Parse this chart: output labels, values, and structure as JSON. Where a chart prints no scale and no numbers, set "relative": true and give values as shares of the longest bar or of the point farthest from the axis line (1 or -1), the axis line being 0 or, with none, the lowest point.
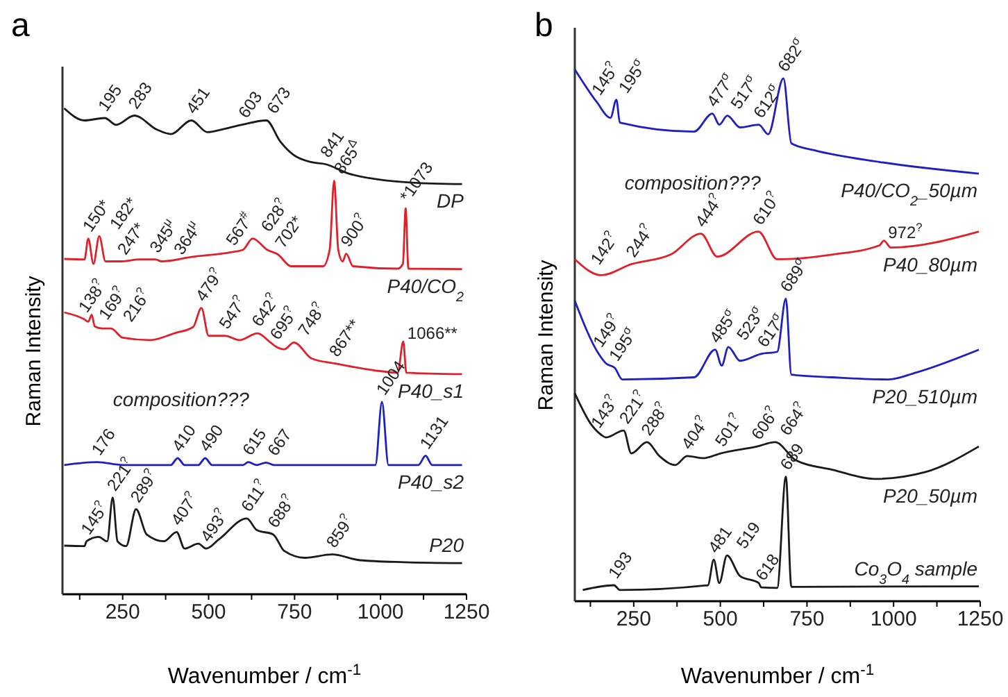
{
  "chart_data": [
    {
      "type": "line",
      "title": "a",
      "xlabel": "Wavenumber / cm$^{-1}$",
      "ylabel": "Raman Intensity",
      "relative": true,
      "tick_labels": "x",
      "legend": false,
      "grid": false,
      "marker": "none",
      "line_style": "solid",
      "xlim": [
        75,
        1250
      ],
      "xticks": [
        {
          "value": 125,
          "label": null
        },
        250,
        {
          "value": 375,
          "label": null
        },
        500,
        {
          "value": 625,
          "label": null
        },
        750,
        {
          "value": 875,
          "label": null
        },
        1000,
        {
          "value": 1125,
          "label": null
        },
        1250
      ],
      "series": [
        {
          "name": "DP",
          "color": "#1a1a1a",
          "x": [
            80,
            139,
            198,
            231,
            284,
            350,
            390,
            450,
            496,
            536,
            595,
            668,
            708,
            747,
            800,
            840,
            906,
            999,
            1091,
            1237
          ],
          "values": [
            1.0,
            0.975,
            0.98,
            0.966,
            0.985,
            0.956,
            0.947,
            0.975,
            0.951,
            0.956,
            0.966,
            0.975,
            0.932,
            0.904,
            0.889,
            0.885,
            0.866,
            0.853,
            0.847,
            0.844
          ]
        },
        {
          "name": "P40/CO$_{2}$",
          "color": "#e0202a",
          "x": [
            80,
            139,
            150,
            165,
            182,
            200,
            247,
            300,
            345,
            364,
            450,
            567,
            600,
            628,
            670,
            702,
            740,
            833,
            852,
            865,
            877,
            890,
            900,
            920,
            1050,
            1065,
            1073,
            1081,
            1237
          ],
          "values": [
            0.69,
            0.689,
            0.732,
            0.68,
            0.737,
            0.685,
            0.685,
            0.689,
            0.689,
            0.685,
            0.694,
            0.704,
            0.709,
            0.732,
            0.709,
            0.699,
            0.675,
            0.675,
            0.709,
            0.851,
            0.709,
            0.685,
            0.701,
            0.675,
            0.67,
            0.68,
            0.794,
            0.67,
            0.669
          ]
        },
        {
          "name": "P40_s1",
          "color": "#e0202a",
          "x": [
            80,
            138,
            150,
            160,
            169,
            190,
            216,
            250,
            330,
            400,
            455,
            479,
            500,
            547,
            590,
            642,
            680,
            695,
            720,
            748,
            800,
            867,
            980,
            1050,
            1066,
            1075,
            1237
          ],
          "values": [
            0.58,
            0.566,
            0.561,
            0.575,
            0.551,
            0.547,
            0.547,
            0.528,
            0.523,
            0.537,
            0.55,
            0.589,
            0.532,
            0.532,
            0.523,
            0.537,
            0.518,
            0.51,
            0.504,
            0.518,
            0.485,
            0.475,
            0.461,
            0.456,
            0.52,
            0.456,
            0.453
          ]
        },
        {
          "name": "P40_s2",
          "color": "#2020c0",
          "x": [
            80,
            176,
            250,
            390,
            410,
            430,
            470,
            490,
            510,
            600,
            615,
            640,
            667,
            690,
            985,
            1004,
            1023,
            1110,
            1131,
            1150,
            1237
          ],
          "values": [
            0.266,
            0.272,
            0.266,
            0.266,
            0.28,
            0.266,
            0.266,
            0.28,
            0.266,
            0.266,
            0.272,
            0.266,
            0.271,
            0.266,
            0.266,
            0.396,
            0.266,
            0.266,
            0.285,
            0.266,
            0.266
          ]
        },
        {
          "name": "P20",
          "color": "#1a1a1a",
          "x": [
            80,
            139,
            145,
            180,
            205,
            221,
            235,
            260,
            289,
            320,
            370,
            407,
            430,
            470,
            493,
            530,
            611,
            640,
            688,
            720,
            780,
            859,
            940,
            1070,
            1237
          ],
          "values": [
            0.1,
            0.099,
            0.109,
            0.118,
            0.109,
            0.199,
            0.109,
            0.099,
            0.175,
            0.123,
            0.109,
            0.128,
            0.094,
            0.104,
            0.094,
            0.113,
            0.156,
            0.132,
            0.123,
            0.089,
            0.075,
            0.082,
            0.07,
            0.066,
            0.064
          ]
        }
      ],
      "annotations": [
        {
          "text": "195",
          "x": 195,
          "y": 0.98
        },
        {
          "text": "283",
          "x": 283,
          "y": 0.985
        },
        {
          "text": "451",
          "x": 451,
          "y": 0.975
        },
        {
          "text": "603",
          "x": 603,
          "y": 0.966
        },
        {
          "text": "673",
          "x": 673,
          "y": 0.975
        },
        {
          "text": "841",
          "x": 841,
          "y": 0.885
        },
        {
          "text": "150*",
          "x": 150,
          "y": 0.732
        },
        {
          "text": "182*",
          "x": 182,
          "y": 0.737
        },
        {
          "text": "247*",
          "x": 247,
          "y": 0.685
        },
        {
          "text": "345$^{μ}$",
          "x": 345,
          "y": 0.689
        },
        {
          "text": "364$^{μ}$",
          "x": 364,
          "y": 0.685
        },
        {
          "text": "567$^{#}$",
          "x": 567,
          "y": 0.704
        },
        {
          "text": "628$^{?}$",
          "x": 628,
          "y": 0.732
        },
        {
          "text": "702*",
          "x": 702,
          "y": 0.699
        },
        {
          "text": "865$^{Δ}$",
          "x": 865,
          "y": 0.851
        },
        {
          "text": "900$^{?}$",
          "x": 900,
          "y": 0.701
        },
        {
          "text": "*1073",
          "x": 1073,
          "y": 0.794
        },
        {
          "text": "138$^{?}$",
          "x": 138,
          "y": 0.566
        },
        {
          "text": "169$^{?}$",
          "x": 169,
          "y": 0.551
        },
        {
          "text": "216$^{?}$",
          "x": 216,
          "y": 0.547
        },
        {
          "text": "479$^{?}$",
          "x": 479,
          "y": 0.589
        },
        {
          "text": "547$^{?}$",
          "x": 547,
          "y": 0.532
        },
        {
          "text": "642$^{?}$",
          "x": 642,
          "y": 0.537
        },
        {
          "text": "695$^{?}$",
          "x": 695,
          "y": 0.51
        },
        {
          "text": "748$^{?}$",
          "x": 748,
          "y": 0.518
        },
        {
          "text": "867**",
          "x": 867,
          "y": 0.475
        },
        {
          "text": "1066**",
          "x": 1066,
          "y": 0.52
        },
        {
          "text": "176",
          "x": 176,
          "y": 0.272
        },
        {
          "text": "410",
          "x": 410,
          "y": 0.28
        },
        {
          "text": "490",
          "x": 490,
          "y": 0.28
        },
        {
          "text": "615",
          "x": 615,
          "y": 0.272
        },
        {
          "text": "667",
          "x": 667,
          "y": 0.271
        },
        {
          "text": "1004",
          "x": 1004,
          "y": 0.396
        },
        {
          "text": "1131",
          "x": 1131,
          "y": 0.285
        },
        "composition???",
        {
          "text": "145$^{?}$",
          "x": 145,
          "y": 0.109
        },
        {
          "text": "221$^{?}$",
          "x": 221,
          "y": 0.199
        },
        {
          "text": "289$^{?}$",
          "x": 289,
          "y": 0.175
        },
        {
          "text": "407$^{?}$",
          "x": 407,
          "y": 0.128
        },
        {
          "text": "493$^{?}$",
          "x": 493,
          "y": 0.094
        },
        {
          "text": "611$^{?}$",
          "x": 611,
          "y": 0.156
        },
        {
          "text": "688$^{?}$",
          "x": 688,
          "y": 0.123
        },
        {
          "text": "859$^{?}$",
          "x": 859,
          "y": 0.082
        }
      ]
    },
    {
      "type": "line",
      "title": "b",
      "xlabel": "Wavenumber / cm$^{-1}$",
      "ylabel": "Raman Intensity",
      "relative": true,
      "tick_labels": "x",
      "legend": false,
      "grid": false,
      "marker": "none",
      "line_style": "solid",
      "xlim": [
        80,
        1250
      ],
      "xticks": [
        {
          "value": 125,
          "label": null
        },
        250,
        {
          "value": 375,
          "label": null
        },
        500,
        {
          "value": 625,
          "label": null
        },
        750,
        {
          "value": 875,
          "label": null
        },
        1000,
        {
          "value": 1125,
          "label": null
        },
        1250
      ],
      "series": [
        {
          "name": "P40/CO$_{2}$_50µm",
          "color": "#2020c0",
          "x": [
            80,
            143,
            183,
            200,
            210,
            424,
            477,
            497,
            520,
            557,
            611,
            638,
            682,
            705,
            771,
            959,
            1246
          ],
          "values": [
            1.0,
            0.939,
            0.909,
            0.943,
            0.9,
            0.883,
            0.917,
            0.896,
            0.913,
            0.891,
            0.896,
            0.878,
            0.983,
            0.861,
            0.848,
            0.826,
            0.804
          ]
        },
        {
          "name": "P40_80µm",
          "color": "#e0202a",
          "x": [
            80,
            156,
            244,
            357,
            444,
            491,
            610,
            664,
            825,
            959,
            972,
            992,
            1246
          ],
          "values": [
            0.643,
            0.613,
            0.634,
            0.652,
            0.691,
            0.648,
            0.695,
            0.643,
            0.652,
            0.669,
            0.678,
            0.665,
            0.695
          ]
        },
        {
          "name": "P20_510µm",
          "color": "#2020c0",
          "x": [
            80,
            149,
            170,
            195,
            217,
            424,
            485,
            504,
            523,
            557,
            617,
            664,
            689,
            705,
            825,
            985,
            1065,
            1246
          ],
          "values": [
            0.565,
            0.465,
            0.447,
            0.439,
            0.417,
            0.421,
            0.473,
            0.443,
            0.478,
            0.452,
            0.465,
            0.469,
            0.569,
            0.426,
            0.421,
            0.417,
            0.43,
            0.473
          ]
        },
        {
          "name": "P20_50µm",
          "color": "#1a1a1a",
          "x": [
            80,
            130,
            156,
            170,
            221,
            243,
            288,
            324,
            370,
            404,
            451,
            501,
            606,
            658,
            718,
            825,
            945,
            1092,
            1246
          ],
          "values": [
            0.391,
            0.33,
            0.313,
            0.308,
            0.321,
            0.278,
            0.299,
            0.273,
            0.256,
            0.273,
            0.269,
            0.278,
            0.291,
            0.299,
            0.265,
            0.247,
            0.23,
            0.243,
            0.291
          ]
        },
        {
          "name": "Co$_{3}$O$_{4}$ sample",
          "color": "#1a1a1a",
          "x": [
            103,
            193,
            210,
            464,
            481,
            497,
            519,
            557,
            611,
            618,
            664,
            689,
            705,
            1246
          ],
          "values": [
            0.021,
            0.03,
            0.021,
            0.03,
            0.078,
            0.034,
            0.086,
            0.047,
            0.034,
            0.026,
            0.025,
            0.234,
            0.027,
            0.028
          ]
        }
      ],
      "annotations": [
        {
          "text": "145$^{?}$",
          "x": 145,
          "y": 0.939
        },
        {
          "text": "195$^{σ}$",
          "x": 195,
          "y": 0.943
        },
        {
          "text": "477$^{σ}$",
          "x": 477,
          "y": 0.917
        },
        {
          "text": "517$^{σ}$",
          "x": 517,
          "y": 0.913
        },
        {
          "text": "612$^{σ}$",
          "x": 612,
          "y": 0.896
        },
        {
          "text": "682$^{σ}$",
          "x": 682,
          "y": 0.983
        },
        "composition???",
        {
          "text": "142$^{?}$",
          "x": 142,
          "y": 0.62
        },
        {
          "text": "244$^{?}$",
          "x": 244,
          "y": 0.634
        },
        {
          "text": "444$^{?}$",
          "x": 444,
          "y": 0.691
        },
        {
          "text": "610$^{?}$",
          "x": 610,
          "y": 0.695
        },
        {
          "text": "972$^{?}$",
          "x": 972,
          "y": 0.678
        },
        {
          "text": "149$^{?}$",
          "x": 149,
          "y": 0.465
        },
        {
          "text": "195$^{σ}$",
          "x": 195,
          "y": 0.439
        },
        {
          "text": "485$^{σ}$",
          "x": 485,
          "y": 0.473
        },
        {
          "text": "523$^{σ}$",
          "x": 523,
          "y": 0.478
        },
        {
          "text": "617$^{σ}$",
          "x": 617,
          "y": 0.465
        },
        {
          "text": "689$^{σ}$",
          "x": 689,
          "y": 0.569
        },
        {
          "text": "143$^{?}$",
          "x": 143,
          "y": 0.313
        },
        {
          "text": "221$^{?}$",
          "x": 221,
          "y": 0.321
        },
        {
          "text": "288$^{?}$",
          "x": 288,
          "y": 0.299
        },
        {
          "text": "404$^{?}$",
          "x": 404,
          "y": 0.273
        },
        {
          "text": "501$^{?}$",
          "x": 501,
          "y": 0.278
        },
        {
          "text": "606$^{?}$",
          "x": 606,
          "y": 0.291
        },
        {
          "text": "664$^{?}$",
          "x": 664,
          "y": 0.299
        },
        {
          "text": "193",
          "x": 193,
          "y": 0.03
        },
        {
          "text": "481",
          "x": 481,
          "y": 0.078
        },
        {
          "text": "519",
          "x": 519,
          "y": 0.086
        },
        {
          "text": "618",
          "x": 618,
          "y": 0.026
        },
        {
          "text": "689",
          "x": 689,
          "y": 0.234
        }
      ]
    }
  ]
}
